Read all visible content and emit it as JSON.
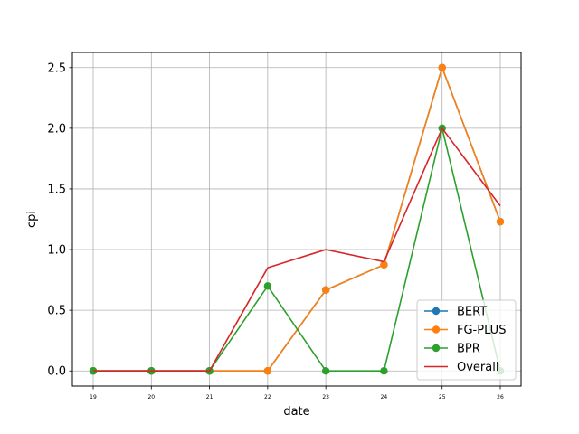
{
  "chart_data": {
    "type": "line",
    "xlabel": "date",
    "ylabel": "cpi",
    "x": [
      "19",
      "20",
      "21",
      "22",
      "23",
      "24",
      "25",
      "26"
    ],
    "ylim": [
      -0.125,
      2.625
    ],
    "yticks": [
      "0.0",
      "0.5",
      "1.0",
      "1.5",
      "2.0",
      "2.5"
    ],
    "grid": true,
    "legend_position": "bottom-right",
    "series": [
      {
        "name": "BERT",
        "color": "#1f77b4",
        "marker": "circle",
        "values": [
          0,
          0,
          0,
          0,
          0.667,
          0.875,
          2.5,
          1.23
        ]
      },
      {
        "name": "FG-PLUS",
        "color": "#ff7f0e",
        "marker": "circle",
        "values": [
          0,
          0,
          0,
          0,
          0.667,
          0.875,
          2.5,
          1.23
        ]
      },
      {
        "name": "BPR",
        "color": "#2ca02c",
        "marker": "circle",
        "values": [
          0,
          0,
          0,
          0.7,
          0,
          0,
          2.0,
          0
        ]
      },
      {
        "name": "Overall",
        "color": "#d62728",
        "marker": "none",
        "values": [
          0,
          0,
          0,
          0.85,
          1.0,
          0.9,
          2.0,
          1.36
        ]
      }
    ]
  }
}
